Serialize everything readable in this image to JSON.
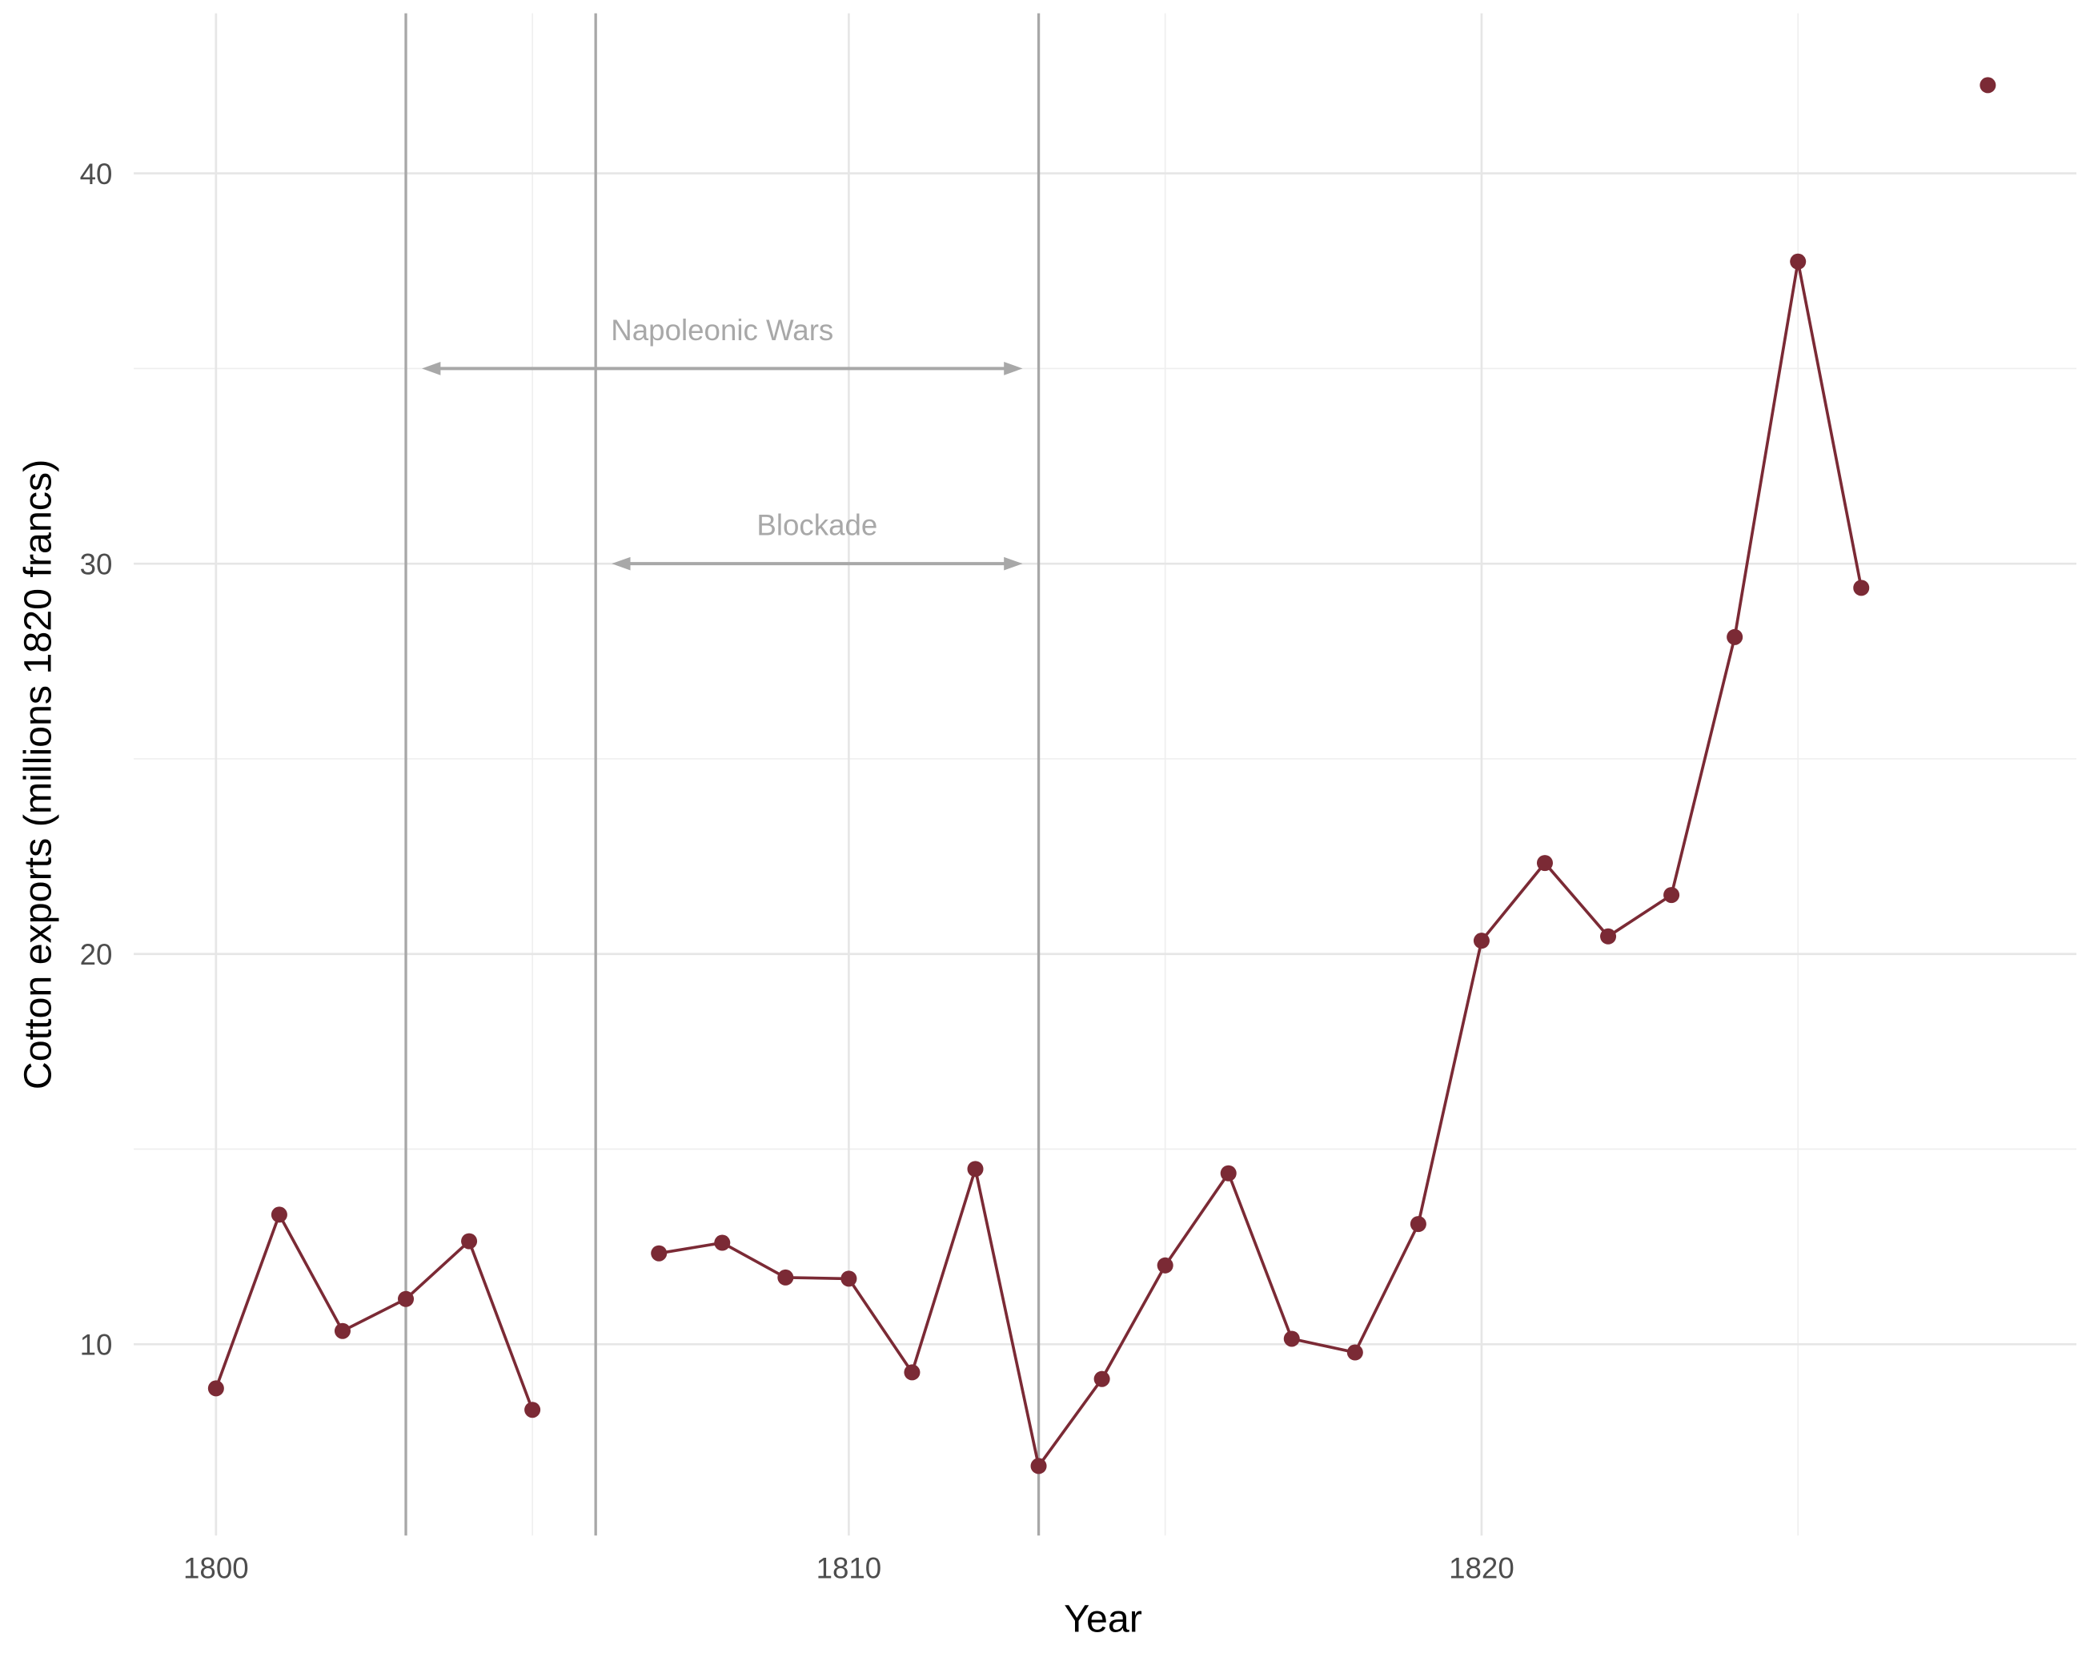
{
  "chart_data": {
    "type": "line",
    "title": "",
    "xlabel": "Year",
    "ylabel": "Cotton exports (millions 1820 francs)",
    "xlim": [
      1798.7,
      1829.4
    ],
    "ylim": [
      5.1,
      44.1
    ],
    "x_ticks": [
      1800,
      1810,
      1820
    ],
    "y_ticks": [
      10,
      20,
      30,
      40
    ],
    "grid": true,
    "series_color": "#7b2a35",
    "annotation_color": "#a8a8a8",
    "x": [
      1800,
      1801,
      1802,
      1803,
      1804,
      1805,
      1806,
      1807,
      1808,
      1809,
      1810,
      1811,
      1812,
      1813,
      1814,
      1815,
      1816,
      1817,
      1818,
      1819,
      1820,
      1821,
      1822,
      1823,
      1824,
      1825,
      1826,
      1827,
      1828
    ],
    "values": [
      8.87,
      13.32,
      10.34,
      11.16,
      12.64,
      8.32,
      null,
      12.33,
      12.6,
      11.71,
      11.68,
      9.28,
      14.49,
      6.88,
      9.11,
      12.02,
      14.38,
      10.14,
      9.79,
      13.08,
      20.34,
      22.33,
      20.45,
      21.51,
      28.12,
      37.74,
      29.38,
      null,
      42.26
    ],
    "vertical_lines": [
      1803,
      1806,
      1813
    ],
    "annotations": [
      {
        "label": "Napoleonic Wars",
        "from": 1803,
        "to": 1813,
        "y": 35,
        "label_x": 1808,
        "label_y": 36
      },
      {
        "label": "Blockade",
        "from": 1806,
        "to": 1813,
        "y": 30,
        "label_x": 1809.5,
        "label_y": 31
      }
    ]
  }
}
